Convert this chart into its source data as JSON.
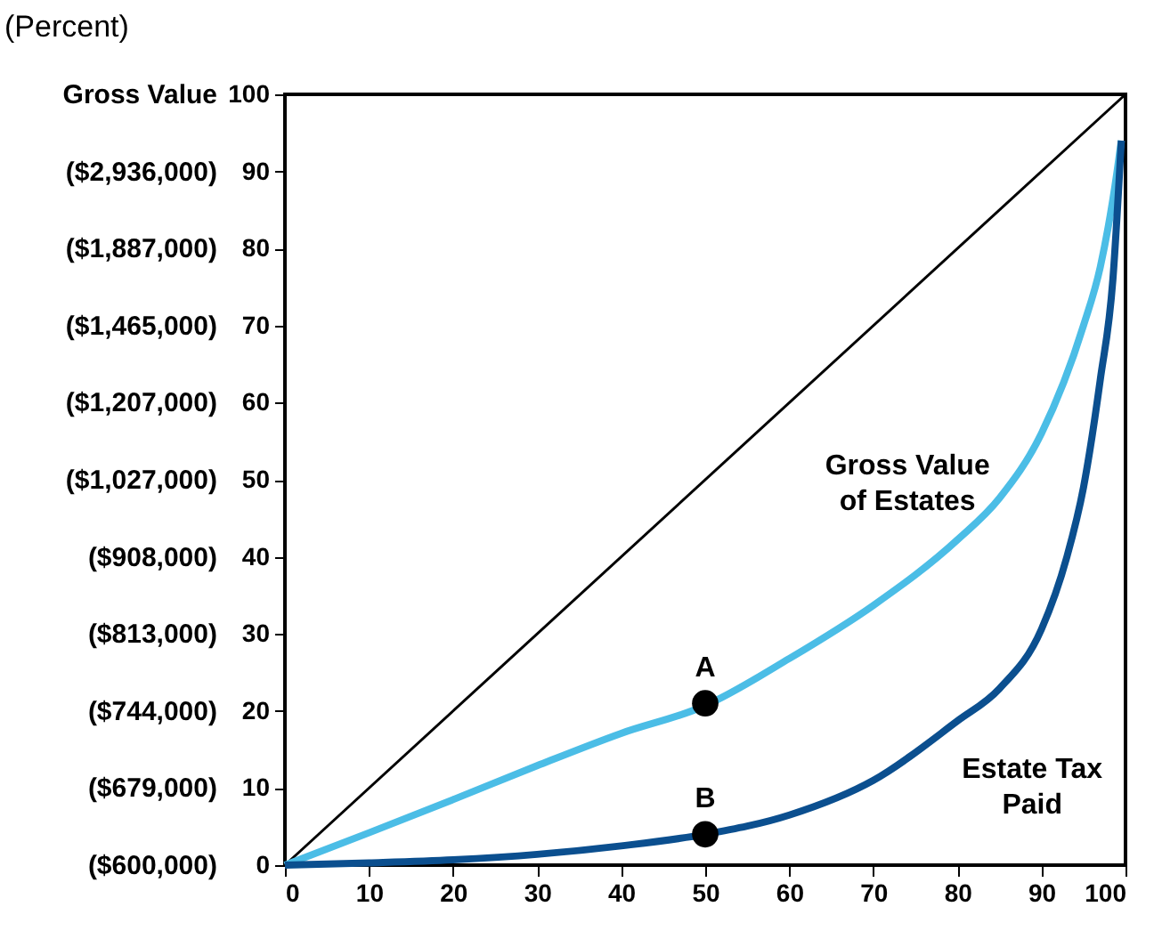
{
  "chart_data": {
    "type": "line",
    "ylabel": "(Percent)",
    "xlim": [
      0,
      100
    ],
    "xticks": [
      0,
      10,
      20,
      30,
      40,
      50,
      60,
      70,
      80,
      90,
      100
    ],
    "ylim": [
      0,
      100
    ],
    "yticks": [
      0,
      10,
      20,
      30,
      40,
      50,
      60,
      70,
      80,
      90,
      100
    ],
    "grid": false,
    "line_style": "solid",
    "marker": "none",
    "series": [
      {
        "color": "#000000",
        "x": [
          0,
          100
        ],
        "values": [
          0,
          100
        ]
      },
      {
        "name": "Gross Value of Estates",
        "color": "#4bbde6",
        "x": [
          0,
          10,
          20,
          30,
          40,
          50,
          60,
          70,
          80,
          85,
          90,
          95,
          97,
          99,
          99.5
        ],
        "values": [
          0,
          4.2,
          8.5,
          12.9,
          17.1,
          20.7,
          26.8,
          33.7,
          42.2,
          47.6,
          56,
          70,
          77.6,
          90,
          94
        ]
      },
      {
        "name": "Estate Tax Paid",
        "color": "#0b4f8f",
        "x": [
          0,
          10,
          20,
          30,
          40,
          50,
          60,
          70,
          80,
          85,
          90,
          93,
          95,
          97,
          98.5,
          99.5
        ],
        "values": [
          0,
          0.3,
          0.7,
          1.4,
          2.5,
          4,
          6.5,
          11,
          18.7,
          22.9,
          30.6,
          39.9,
          49,
          63,
          76,
          94
        ]
      },
      {
        "type": "scatter",
        "marker": "circle",
        "color": "#000000",
        "x": [
          50,
          50
        ],
        "values": [
          21,
          4
        ]
      }
    ],
    "annotations": [
      {
        "text": "A",
        "x": 50,
        "y": 21
      },
      {
        "text": "B",
        "x": 50,
        "y": 4
      },
      "($600,000)",
      "($679,000)",
      "($744,000)",
      "($813,000)",
      "($908,000)",
      "($1,027,000)",
      "($1,207,000)",
      "($1,465,000)",
      "($1,887,000)",
      "($2,936,000)",
      "Gross Value"
    ]
  }
}
